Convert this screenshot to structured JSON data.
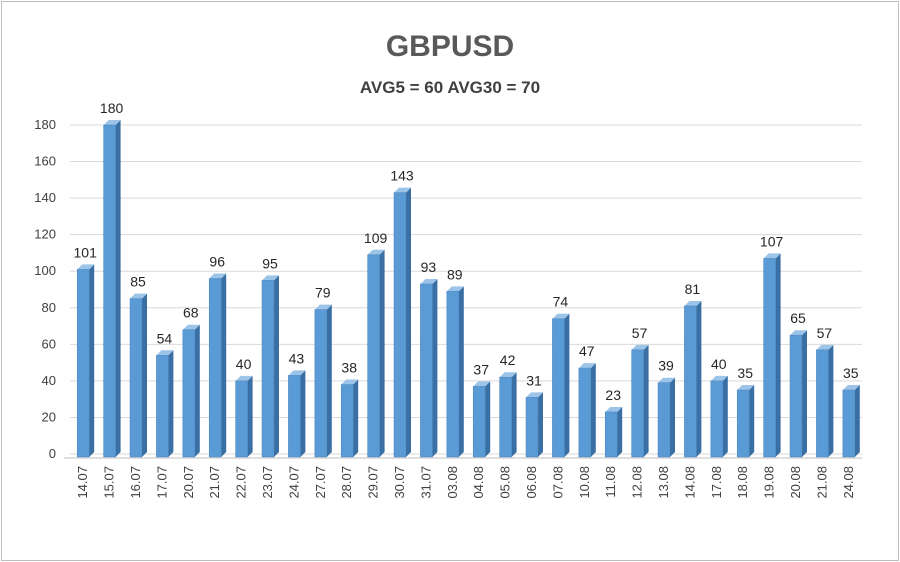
{
  "title": "GBPUSD",
  "subtitle": "AVG5 = 60 AVG30 = 70",
  "colors": {
    "bar_front": "#5b9bd5",
    "bar_side": "#3a6fa3",
    "bar_top": "#9cc3e8",
    "grid": "#d9d9d9"
  },
  "chart_data": {
    "type": "bar",
    "title": "GBPUSD",
    "subtitle": "AVG5 = 60 AVG30 = 70",
    "categories": [
      "14.07",
      "15.07",
      "16.07",
      "17.07",
      "20.07",
      "21.07",
      "22.07",
      "23.07",
      "24.07",
      "27.07",
      "28.07",
      "29.07",
      "30.07",
      "31.07",
      "03.08",
      "04.08",
      "05.08",
      "06.08",
      "07.08",
      "10.08",
      "11.08",
      "12.08",
      "13.08",
      "14.08",
      "17.08",
      "18.08",
      "19.08",
      "20.08",
      "21.08",
      "24.08"
    ],
    "values": [
      101,
      180,
      85,
      54,
      68,
      96,
      40,
      95,
      43,
      79,
      38,
      109,
      143,
      93,
      89,
      37,
      42,
      31,
      74,
      47,
      23,
      57,
      39,
      81,
      40,
      35,
      107,
      65,
      57,
      35
    ],
    "yticks": [
      0,
      20,
      40,
      60,
      80,
      100,
      120,
      140,
      160,
      180
    ],
    "ylim": [
      0,
      180
    ],
    "grid": true,
    "data_labels": true,
    "xlabel": "",
    "ylabel": ""
  }
}
